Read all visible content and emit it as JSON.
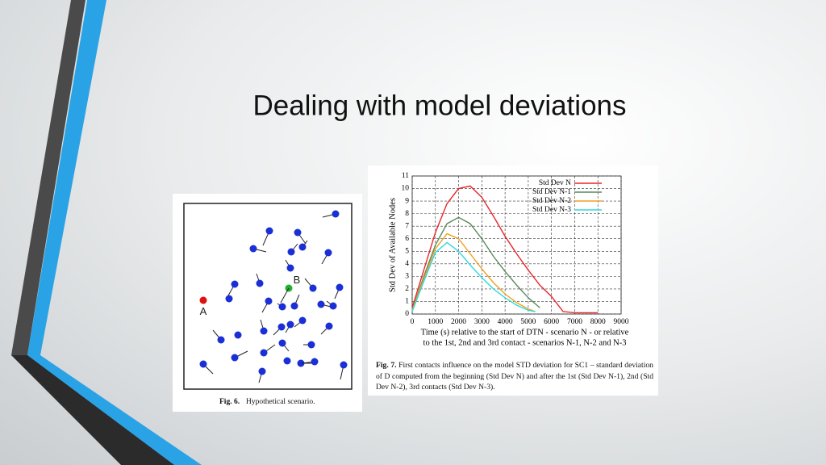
{
  "slide_title": "Dealing with model deviations",
  "fig6": {
    "labels": [
      "A",
      "B"
    ],
    "caption_label": "Fig. 6.",
    "caption": "Hypothetical scenario."
  },
  "chart_data": {
    "type": "line",
    "ylabel": "Std Dev of Available Nodes",
    "xlabel": [
      "Time (s) relative to the start of DTN - scenario N - or relative",
      "to the 1st, 2nd and 3rd contact - scenarios N-1, N-2 and N-3"
    ],
    "xlim": [
      0,
      9000
    ],
    "ylim": [
      0,
      11
    ],
    "xticks": [
      0,
      1000,
      2000,
      3000,
      4000,
      5000,
      6000,
      7000,
      8000,
      9000
    ],
    "yticks": [
      0,
      1,
      2,
      3,
      4,
      5,
      6,
      7,
      8,
      9,
      10,
      11
    ],
    "grid": true,
    "legend": "top-right",
    "series": [
      {
        "name": "Std Dev N",
        "color": "#e8262b",
        "x": [
          0,
          500,
          1000,
          1500,
          2000,
          2500,
          3000,
          3500,
          4000,
          4500,
          5000,
          5500,
          6000,
          6500,
          7000,
          8000
        ],
        "values": [
          0.5,
          3.5,
          6.5,
          8.8,
          10,
          10.2,
          9.3,
          7.8,
          6.2,
          4.8,
          3.5,
          2.3,
          1.4,
          0.2,
          0.1,
          0.1
        ]
      },
      {
        "name": "Std Dev N-1",
        "color": "#5a8a5a",
        "x": [
          0,
          500,
          1000,
          1500,
          2000,
          2500,
          3000,
          3500,
          4000,
          4500,
          5000,
          5500
        ],
        "values": [
          0.3,
          3,
          5.5,
          7.2,
          7.7,
          7.2,
          6,
          4.6,
          3.4,
          2.3,
          1.3,
          0.5
        ]
      },
      {
        "name": "Std Dev N-2",
        "color": "#f0a020",
        "x": [
          0,
          500,
          1000,
          1500,
          2000,
          2500,
          3000,
          3500,
          4000,
          4500,
          5000,
          5300
        ],
        "values": [
          0.3,
          2.8,
          5.2,
          6.4,
          6,
          4.8,
          3.6,
          2.5,
          1.6,
          0.9,
          0.4,
          0.2
        ]
      },
      {
        "name": "Std Dev N-3",
        "color": "#30d8e0",
        "x": [
          0,
          500,
          1000,
          1500,
          2000,
          2500,
          3000,
          3500,
          4000,
          4500,
          5000,
          5300
        ],
        "values": [
          0.2,
          2.6,
          4.9,
          5.7,
          5,
          3.9,
          2.9,
          2,
          1.3,
          0.7,
          0.3,
          0.2
        ]
      }
    ]
  },
  "fig7": {
    "caption_label": "Fig. 7.",
    "caption": "First contacts influence on the model STD deviation for SC1 – standard deviation of D computed from the beginning (Std Dev N) and after the 1st (Std Dev N-1), 2nd (Std Dev N-2), 3rd contacts (Std Dev N-3)."
  }
}
